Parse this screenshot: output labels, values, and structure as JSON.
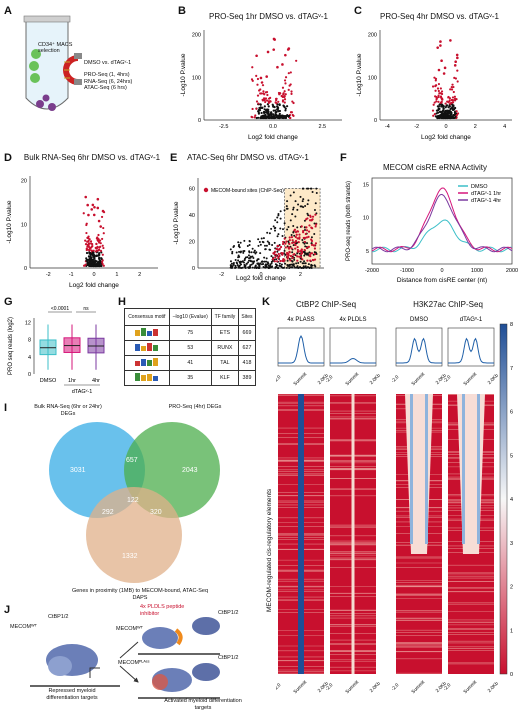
{
  "panels": {
    "A": {
      "label": "A",
      "cells": "CD34⁺ MACS selection",
      "condition": "DMSO vs. dTAGᵛ-1",
      "assays": [
        "PRO-Seq (1, 4hrs)",
        "RNA-Seq (6, 24hrs)",
        "ATAC-Seq (6 hrs)"
      ]
    },
    "B": {
      "label": "B",
      "title": "PRO-Seq 1hr DMSO vs. dTAGᵛ-1",
      "xlabel": "Log2 fold change",
      "ylabel": "-Log10 P.value",
      "yticks": [
        "0",
        "100",
        "200"
      ],
      "xticks": [
        "-2.5",
        "0.0",
        "2.5"
      ]
    },
    "C": {
      "label": "C",
      "title": "PRO-Seq 4hr DMSO vs. dTAGᵛ-1",
      "xlabel": "Log2 fold change",
      "ylabel": "-Log10 P.value",
      "yticks": [
        "0",
        "100",
        "200"
      ],
      "xticks": [
        "-4",
        "-2",
        "0",
        "2",
        "4"
      ]
    },
    "D": {
      "label": "D",
      "title": "Bulk RNA-Seq 6hr DMSO vs. dTAGᵛ-1",
      "xlabel": "Log2 fold change",
      "ylabel": "-Log10 P.value",
      "yticks": [
        "0",
        "10",
        "20"
      ],
      "xticks": [
        "-2",
        "-1",
        "0",
        "1",
        "2"
      ]
    },
    "E": {
      "label": "E",
      "title": "ATAC-Seq 6hr DMSO vs. dTAGᵛ-1",
      "xlabel": "Log2 fold change",
      "ylabel": "-Log10 P.value",
      "yticks": [
        "0",
        "20",
        "40",
        "60"
      ],
      "xticks": [
        "-2",
        "0",
        "2"
      ],
      "legend": "MECOM-bound sites (ChIP-Seq)"
    },
    "F": {
      "label": "F",
      "title": "MECOM cisRE eRNA Activity",
      "xlabel": "Distance from cisRE center (nt)",
      "ylabel": "PRO-seq reads (both strands)",
      "yticks": [
        "5",
        "10",
        "15"
      ],
      "xticks": [
        "-2000",
        "-1000",
        "0",
        "1000",
        "2000"
      ],
      "legend": [
        "DMSO",
        "dTAGᵛ-1 1hr",
        "dTAGᵛ-1 4hr"
      ]
    },
    "G": {
      "label": "G",
      "ylabel": "PRO seq reads (log2)",
      "yticks": [
        "0",
        "4",
        "8",
        "12"
      ],
      "categories": [
        "DMSO",
        "1hr",
        "4hr"
      ],
      "group_label": "dTAGᵛ-1",
      "pvals": [
        "<0.0001",
        "ns"
      ]
    },
    "H": {
      "label": "H",
      "headers": [
        "Consensus motif",
        "–log10 (Evalue)",
        "TF family",
        "Sites"
      ],
      "rows": [
        {
          "evalue": "75",
          "tf": "ETS",
          "sites": "669"
        },
        {
          "evalue": "53",
          "tf": "RUNX",
          "sites": "627"
        },
        {
          "evalue": "41",
          "tf": "TAL",
          "sites": "418"
        },
        {
          "evalue": "35",
          "tf": "KLF",
          "sites": "389"
        }
      ]
    },
    "I": {
      "label": "I",
      "sets": [
        "Bulk RNA-Seq (6hr or 24hr) DEGs",
        "PRO-Seq (4hr) DEGs",
        "Genes in proximity (1MB) to MECOM-bound, ATAC-Seq DAPS"
      ],
      "counts": {
        "a_only": "3031",
        "b_only": "2043",
        "c_only": "1332",
        "ab": "657",
        "ac": "292",
        "bc": "320",
        "abc": "122"
      },
      "colors": [
        "#4fb6e9",
        "#4cae4c",
        "#e0b08a"
      ]
    },
    "J": {
      "label": "J",
      "labels": {
        "ctbp_left": "CtBP1/2",
        "mecom_wt": "MECOMᵂᵀ",
        "repressed": "Repressed myeloid differentiation targets",
        "inhibitor": "4x PLDLS peptide inhibitor",
        "ctbp_top": "CtBP1/2",
        "mecom_wt2": "MECOMᵂᵀ",
        "mecom_plass": "MECOMᴾᴸᴬˢˢ",
        "ctbp_bottom": "CtBP1/2",
        "activated": "Activated myeloid differentiation targets"
      }
    },
    "K": {
      "label": "K",
      "titles": [
        "CtBP2 ChIP-Seq",
        "H3K27ac ChIP-Seq"
      ],
      "columns": [
        "4x PLASS",
        "4x PLDLS",
        "DMSO",
        "dTAGᵛ-1"
      ],
      "ylabel": "MECOM-regulated cis-regulatory elements",
      "xticks": [
        "-2.0",
        "Summit",
        "2.0Kb"
      ],
      "colorbar_ticks": [
        "8",
        "7",
        "6",
        "5",
        "4",
        "3",
        "2",
        "1",
        "0"
      ]
    }
  },
  "colors": {
    "dmso": "#3cbfc8",
    "hr1": "#d6157a",
    "hr4": "#7b3aa0",
    "red": "#c8102e",
    "blue": "#1f4e96"
  }
}
